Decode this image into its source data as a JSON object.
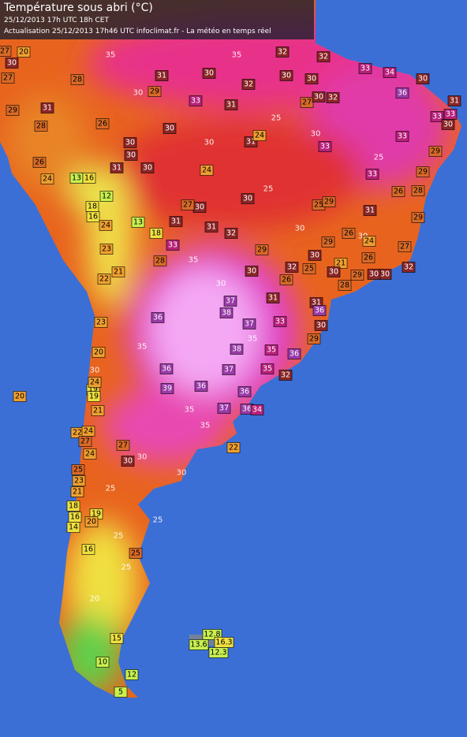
{
  "header": {
    "title": "Température sous abri (°C)",
    "timestamp": "25/12/2013  17h UTC  18h CET",
    "update": "Actualisation 25/12/2013 17h46 UTC  infoclimat.fr - La météo en temps réel"
  },
  "stations": [
    32,
    32,
    33,
    34,
    30,
    31,
    30,
    32,
    30,
    30,
    36,
    31,
    33,
    31,
    27,
    30,
    32,
    33,
    33,
    30,
    29,
    28,
    27,
    20,
    27,
    30,
    29,
    31,
    28,
    26,
    30,
    30,
    31,
    33,
    33,
    29,
    30,
    24,
    24,
    31,
    26,
    30,
    29,
    33,
    24,
    13,
    16,
    12,
    26,
    28,
    29,
    30,
    30,
    27,
    25,
    29,
    31,
    31,
    31,
    32,
    13,
    24,
    18,
    16,
    18,
    23,
    33,
    28,
    26,
    29,
    24,
    27,
    30,
    29,
    30,
    25,
    32,
    26,
    21,
    30,
    28,
    26,
    30,
    32,
    29,
    30,
    22,
    21,
    37,
    38,
    37,
    31,
    31,
    36,
    36,
    33,
    29,
    30,
    23,
    20,
    38,
    35,
    36,
    36,
    37,
    35,
    32,
    20,
    19,
    19,
    24,
    39,
    36,
    36,
    37,
    36,
    34,
    21,
    22,
    24,
    27,
    24,
    27,
    30,
    25,
    23,
    21,
    22,
    18,
    16,
    19,
    20,
    14,
    16,
    25,
    15,
    10,
    12,
    5,
    12.8,
    13.6,
    16.3,
    12.3
  ],
  "contours": [
    35,
    35,
    30,
    30,
    30,
    25,
    25,
    30,
    35,
    30,
    35,
    35,
    30,
    35,
    35,
    30,
    25,
    25,
    30,
    25,
    20,
    25,
    30,
    25
  ]
}
